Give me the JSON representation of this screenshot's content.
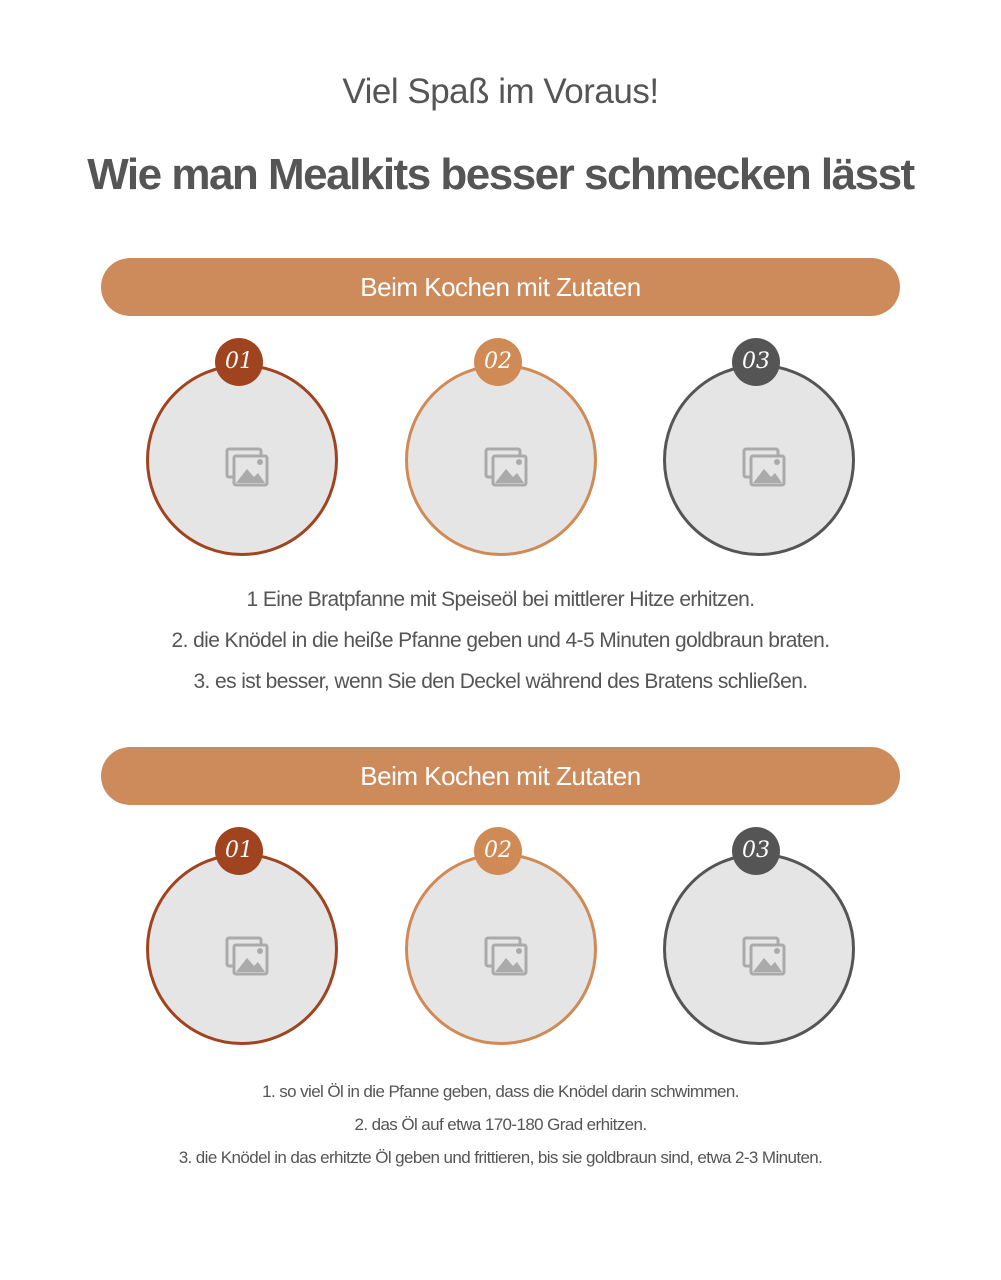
{
  "header": {
    "subtitle": "Viel Spaß im Voraus!",
    "title": "Wie man Mealkits besser schmecken lässt"
  },
  "colors": {
    "banner": "#cd8a5a",
    "step1": "#a0431f",
    "step2": "#d08a55",
    "step3": "#555555",
    "placeholder": "#e6e5e6"
  },
  "sections": [
    {
      "banner": "Beim Kochen mit Zutaten",
      "steps": [
        {
          "number": "01",
          "icon": "image-placeholder-icon"
        },
        {
          "number": "02",
          "icon": "image-placeholder-icon"
        },
        {
          "number": "03",
          "icon": "image-placeholder-icon"
        }
      ],
      "instructions": [
        "1 Eine Bratpfanne mit Speiseöl bei mittlerer Hitze erhitzen.",
        "2. die Knödel in die heiße Pfanne geben und 4-5 Minuten goldbraun braten.",
        "3. es ist besser, wenn Sie den Deckel während des Bratens schließen."
      ]
    },
    {
      "banner": "Beim Kochen mit Zutaten",
      "steps": [
        {
          "number": "01",
          "icon": "image-placeholder-icon"
        },
        {
          "number": "02",
          "icon": "image-placeholder-icon"
        },
        {
          "number": "03",
          "icon": "image-placeholder-icon"
        }
      ],
      "instructions": [
        "1. so viel Öl in die Pfanne geben, dass die Knödel darin schwimmen.",
        "2. das Öl auf etwa 170-180 Grad erhitzen.",
        "3. die Knödel in das erhitzte Öl geben und frittieren, bis sie goldbraun sind, etwa 2-3 Minuten."
      ]
    }
  ]
}
